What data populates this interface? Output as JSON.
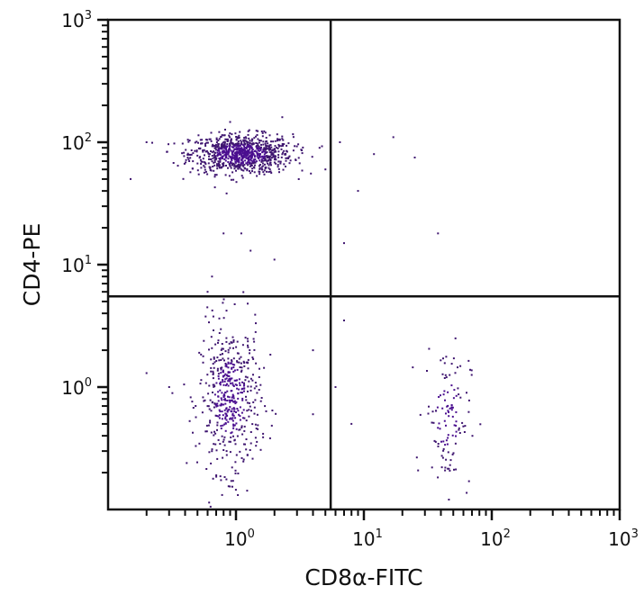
{
  "chart_data": {
    "type": "scatter",
    "xlabel": "CD8α-FITC",
    "ylabel": "CD4-PE",
    "x_scale": "log",
    "y_scale": "log",
    "xlim": [
      0.1,
      1000
    ],
    "ylim": [
      0.1,
      1000
    ],
    "x_ticks": [
      {
        "value": 1,
        "base": "10",
        "exp": "0"
      },
      {
        "value": 10,
        "base": "10",
        "exp": "1"
      },
      {
        "value": 100,
        "base": "10",
        "exp": "2"
      },
      {
        "value": 1000,
        "base": "10",
        "exp": "3"
      }
    ],
    "y_ticks": [
      {
        "value": 1,
        "base": "10",
        "exp": "0"
      },
      {
        "value": 10,
        "base": "10",
        "exp": "1"
      },
      {
        "value": 100,
        "base": "10",
        "exp": "2"
      },
      {
        "value": 1000,
        "base": "10",
        "exp": "3"
      }
    ],
    "grid": false,
    "quadrant_gates": {
      "x": 5.5,
      "y": 5.5
    },
    "point_color": "#3f1670",
    "dense_color": "#4a0e8f",
    "populations": [
      {
        "quadrant": "upper-left",
        "center": [
          1.1,
          80
        ],
        "spread_decades": [
          0.2,
          0.08
        ],
        "count": 900
      },
      {
        "quadrant": "lower-left",
        "center": [
          0.9,
          0.8
        ],
        "spread_decades": [
          0.12,
          0.3
        ],
        "count": 500
      },
      {
        "quadrant": "lower-right",
        "center": [
          45,
          0.6
        ],
        "spread_decades": [
          0.09,
          0.3
        ],
        "count": 120
      }
    ],
    "outliers": [
      [
        0.15,
        50
      ],
      [
        0.2,
        100
      ],
      [
        6.5,
        100
      ],
      [
        17,
        110
      ],
      [
        12,
        80
      ],
      [
        9,
        40
      ],
      [
        25,
        75
      ],
      [
        7,
        15
      ],
      [
        38,
        18
      ],
      [
        0.8,
        18
      ],
      [
        1.1,
        18
      ],
      [
        1.3,
        13
      ],
      [
        2,
        11
      ],
      [
        0.65,
        8
      ],
      [
        0.6,
        6
      ],
      [
        0.2,
        1.3
      ],
      [
        0.3,
        1.0
      ],
      [
        4,
        2
      ],
      [
        4,
        0.6
      ],
      [
        6,
        1
      ],
      [
        7,
        3.5
      ],
      [
        8,
        0.5
      ],
      [
        2.3,
        160
      ],
      [
        4.5,
        90
      ],
      [
        5,
        60
      ]
    ]
  }
}
